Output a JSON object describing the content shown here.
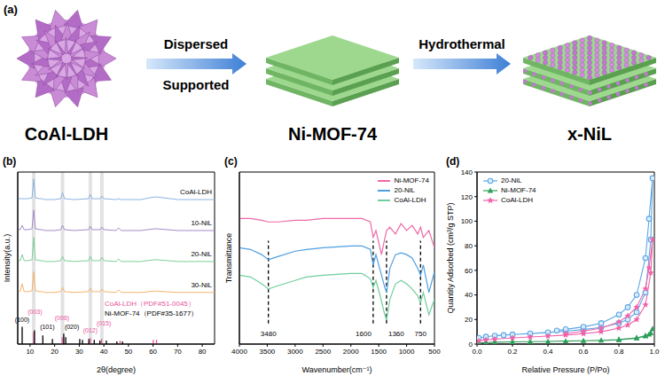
{
  "panels": [
    "(a)",
    "(b)",
    "(c)",
    "(d)"
  ],
  "diagram": {
    "items": [
      "CoAl-LDH",
      "Ni-MOF-74",
      "x-NiL"
    ],
    "steps": [
      [
        "Dispersed",
        "Supported"
      ],
      [
        "Hydrothermal"
      ]
    ]
  },
  "chart_data": [
    {
      "type": "line",
      "x_label": "2θ(degree)",
      "y_label": "Intensity(a.u.)",
      "x": [
        5,
        6,
        6.8,
        7.6,
        9,
        10.8,
        11.5,
        12.2,
        14,
        15,
        16,
        20,
        22.5,
        23.2,
        24,
        28,
        33.8,
        34.5,
        35.2,
        38.5,
        39.2,
        40,
        45,
        46,
        47,
        55,
        60.5,
        61.5,
        70,
        85
      ],
      "series": [
        {
          "name": "CoAl-LDH",
          "color": "#8db3e2",
          "values": [
            85,
            84.5,
            84.5,
            84.5,
            84.5,
            85,
            96,
            85,
            84.5,
            84.5,
            84,
            84,
            84.5,
            88,
            84.5,
            84,
            84.5,
            87,
            84.5,
            84.5,
            86,
            84.5,
            84,
            84.5,
            84,
            84,
            85.5,
            85.5,
            84,
            84
          ]
        },
        {
          "name": "10-NiL",
          "color": "#a58bc9",
          "values": [
            67,
            66.5,
            69,
            66.5,
            66.5,
            67,
            78,
            67,
            66.5,
            66.5,
            66,
            66,
            66.5,
            69,
            66.5,
            66,
            66.5,
            68.5,
            66.5,
            66.5,
            68,
            66.5,
            66,
            67.5,
            66,
            66,
            67,
            67,
            66,
            66
          ]
        },
        {
          "name": "20-NiL",
          "color": "#7fcf98",
          "values": [
            49,
            48.5,
            52,
            48.5,
            48.5,
            49,
            62,
            49,
            48.5,
            48.5,
            48,
            48,
            48.5,
            51,
            48.5,
            48,
            48.5,
            51,
            48.5,
            48.5,
            50.5,
            48.5,
            48,
            49.5,
            48,
            48,
            49,
            49,
            48,
            48
          ]
        },
        {
          "name": "30-NiL",
          "color": "#f5b46c",
          "values": [
            31,
            30.5,
            35,
            30.5,
            30.5,
            31,
            42,
            31,
            30.5,
            30.5,
            30,
            30,
            30.5,
            33,
            30.5,
            30,
            30.5,
            32.5,
            30.5,
            30.5,
            32,
            30.5,
            30,
            31.5,
            30,
            30,
            30.8,
            30.8,
            30,
            30
          ]
        }
      ],
      "xlim": [
        5,
        85
      ],
      "xticks": [
        10,
        20,
        30,
        40,
        50,
        60,
        70,
        80
      ],
      "ylim": [
        0,
        100
      ],
      "tick_labels": "x",
      "highlight_x": [
        11.5,
        23.2,
        34.5,
        39.2
      ],
      "reference_patterns": [
        {
          "name": "CoAl-LDH（PDF#51-0045）",
          "color": "#e8559b",
          "x": [
            11.5,
            23.1,
            34.5,
            39.1,
            46.6,
            60.1,
            61.4
          ],
          "values": [
            7,
            4,
            3.5,
            3,
            2,
            2.5,
            2.5
          ]
        },
        {
          "name": "Ni-MOF-74（PDF#35-1677）",
          "color": "#000000",
          "x": [
            6.8,
            11.8,
            15.2,
            19.1,
            23.7,
            24.5,
            30.2,
            31.3,
            33.9,
            36.1,
            38.4,
            41,
            45.3,
            47.6
          ],
          "values": [
            10,
            8,
            5,
            3,
            6,
            4,
            3,
            2.5,
            3,
            2.5,
            2,
            2,
            1.5,
            1.5
          ]
        }
      ],
      "annotations": [
        {
          "text": "(100)",
          "x": 6.8,
          "y": 14,
          "color": "#000000"
        },
        {
          "text": "(003)",
          "x": 12,
          "y": 19,
          "color": "#e8559b"
        },
        {
          "text": "(101)",
          "x": 17,
          "y": 10,
          "color": "#000000"
        },
        {
          "text": "(006)",
          "x": 23,
          "y": 15,
          "color": "#e8559b"
        },
        {
          "text": "(020)",
          "x": 27,
          "y": 10,
          "color": "#000000"
        },
        {
          "text": "(012)",
          "x": 34.5,
          "y": 8,
          "color": "#e8559b"
        },
        {
          "text": "(015)",
          "x": 40,
          "y": 12,
          "color": "#e8559b"
        }
      ]
    },
    {
      "type": "line",
      "x_label": "Wavenumber(cm⁻¹)",
      "y_label": "Transmittance",
      "x": [
        4000,
        3800,
        3600,
        3480,
        3300,
        3000,
        2800,
        2500,
        2000,
        1800,
        1650,
        1600,
        1550,
        1450,
        1400,
        1360,
        1300,
        1200,
        1100,
        1000,
        900,
        800,
        750,
        700,
        600,
        500
      ],
      "series": [
        {
          "name": "Ni-MOF-74",
          "color": "#ee6aa7",
          "values": [
            73,
            73,
            72,
            71,
            71,
            72,
            72,
            73,
            73,
            73,
            71,
            62,
            66,
            52,
            60,
            66,
            68,
            64,
            70,
            66,
            69,
            64,
            68,
            62,
            66,
            56
          ]
        },
        {
          "name": "20-NiL",
          "color": "#4f9fe0",
          "values": [
            56,
            55,
            52,
            49,
            51,
            54,
            55,
            56,
            57,
            57,
            55,
            46,
            52,
            40,
            34,
            30,
            44,
            52,
            53,
            52,
            50,
            44,
            40,
            46,
            30,
            42
          ]
        },
        {
          "name": "CoAl-LDH",
          "color": "#6fcf9f",
          "values": [
            40,
            39,
            35,
            32,
            34,
            37,
            39,
            40,
            41,
            41,
            38,
            33,
            37,
            25,
            18,
            14,
            26,
            35,
            37,
            35,
            32,
            28,
            24,
            30,
            17,
            26
          ]
        }
      ],
      "xlim": [
        4000,
        500
      ],
      "xticks": [
        4000,
        3500,
        3000,
        2500,
        2000,
        1500,
        1000,
        500
      ],
      "ylim": [
        0,
        100
      ],
      "tick_labels": "x",
      "legend": "upper right",
      "markers": [
        3480,
        1600,
        1360,
        750
      ]
    },
    {
      "type": "line",
      "x_label": "Relative Pressure (P/Po)",
      "y_label": "Quantity Adsorbed (cm³/g STP)",
      "series": [
        {
          "name": "20-NiL",
          "color": "#5aa7e6",
          "marker": "circle",
          "x": [
            0.01,
            0.05,
            0.1,
            0.15,
            0.2,
            0.3,
            0.4,
            0.5,
            0.6,
            0.7,
            0.8,
            0.85,
            0.9,
            0.95,
            0.98,
            0.99,
            0.97,
            0.95,
            0.9,
            0.85,
            0.8,
            0.7,
            0.6,
            0.5,
            0.45
          ],
          "values": [
            5,
            6,
            6.8,
            7.3,
            7.8,
            8.6,
            9.5,
            10.5,
            11.8,
            13.5,
            17,
            20,
            26,
            42,
            85,
            135,
            102,
            70,
            40,
            30,
            24,
            17,
            14,
            12,
            11
          ]
        },
        {
          "name": "Ni-MOF-74",
          "color": "#2e9e5b",
          "marker": "triangle",
          "x": [
            0.01,
            0.05,
            0.1,
            0.2,
            0.3,
            0.4,
            0.5,
            0.6,
            0.7,
            0.8,
            0.9,
            0.95,
            0.98,
            0.99,
            0.97,
            0.95,
            0.9,
            0.8
          ],
          "values": [
            1,
            1.3,
            1.5,
            1.8,
            2,
            2.2,
            2.4,
            2.7,
            3,
            3.5,
            4.8,
            6.5,
            9,
            12.5,
            8,
            6.8,
            5,
            3.8
          ]
        },
        {
          "name": "CoAl-LDH",
          "color": "#f062a8",
          "marker": "star",
          "x": [
            0.01,
            0.05,
            0.1,
            0.2,
            0.3,
            0.4,
            0.5,
            0.6,
            0.7,
            0.8,
            0.85,
            0.9,
            0.95,
            0.98,
            0.99,
            0.97,
            0.95,
            0.9,
            0.85,
            0.8,
            0.7,
            0.6,
            0.5
          ],
          "values": [
            2.5,
            3.5,
            4,
            5,
            5.8,
            6.5,
            7.3,
            8.5,
            10,
            13,
            15.5,
            20,
            32,
            58,
            85,
            62,
            45,
            30,
            23,
            18,
            13,
            10.5,
            8.5
          ]
        }
      ],
      "xlim": [
        0,
        1
      ],
      "xticks": [
        {
          "value": 0,
          "label": "0.0"
        },
        {
          "value": 0.2,
          "label": "0.2"
        },
        {
          "value": 0.4,
          "label": "0.4"
        },
        {
          "value": 0.6,
          "label": "0.6"
        },
        {
          "value": 0.8,
          "label": "0.8"
        },
        {
          "value": 1,
          "label": "1.0"
        }
      ],
      "ylim": [
        0,
        140
      ],
      "yticks": [
        0,
        20,
        40,
        60,
        80,
        100,
        120,
        140
      ],
      "legend": "upper left"
    }
  ]
}
